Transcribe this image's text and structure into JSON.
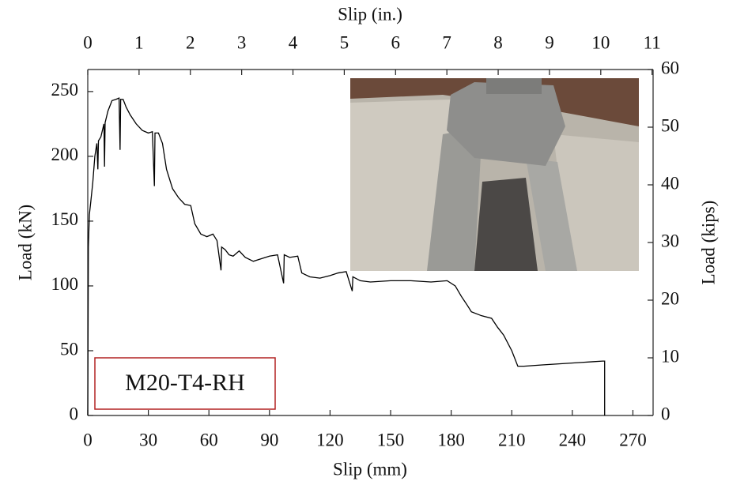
{
  "chart_data": {
    "type": "line",
    "xlabel": "Slip (mm)",
    "x2label": "Slip (in.)",
    "ylabel": "Load (kN)",
    "y2label": "Load (kips)",
    "annotation": "M20-T4-RH",
    "xlim": [
      0,
      280
    ],
    "xticks": [
      0,
      30,
      60,
      90,
      120,
      150,
      180,
      210,
      240,
      270
    ],
    "x2lim": [
      0,
      11.02
    ],
    "x2ticks": [
      0,
      1,
      2,
      3,
      4,
      5,
      6,
      7,
      8,
      9,
      10,
      11
    ],
    "ylim": [
      0,
      267
    ],
    "yticks": [
      0,
      50,
      100,
      150,
      200,
      250
    ],
    "y2lim": [
      0,
      60
    ],
    "y2ticks": [
      0,
      10,
      20,
      30,
      40,
      50,
      60
    ],
    "x": [
      0,
      0.3,
      0.8,
      1.5,
      2.5,
      3.5,
      4.5,
      5,
      5.3,
      6.5,
      8,
      8.3,
      8.6,
      10,
      12,
      14,
      15.5,
      16,
      16.3,
      17.5,
      19,
      21,
      24,
      27,
      30,
      32,
      33,
      33.3,
      35,
      37,
      39,
      42,
      45,
      48,
      51,
      53,
      56,
      59,
      62,
      64,
      66,
      66.3,
      68,
      70,
      72,
      75,
      78,
      82,
      86,
      90,
      94,
      97,
      97.3,
      100,
      104,
      106,
      110,
      115,
      120,
      124,
      128,
      131,
      131.3,
      135,
      140,
      150,
      160,
      170,
      178,
      182,
      185,
      188,
      190,
      195,
      200,
      203,
      206,
      210,
      213,
      216,
      225,
      235,
      245,
      250,
      255,
      256,
      256
    ],
    "series": [
      {
        "name": "Load",
        "color": "#000000",
        "values": [
          0,
          130,
          155,
          165,
          180,
          200,
          210,
          190,
          212,
          215,
          225,
          192,
          226,
          235,
          243,
          244,
          245,
          205,
          244,
          244,
          238,
          232,
          225,
          220,
          218,
          219,
          177,
          218,
          218,
          210,
          190,
          175,
          168,
          163,
          162,
          148,
          140,
          138,
          140,
          135,
          112,
          130,
          128,
          124,
          123,
          127,
          122,
          119,
          121,
          123,
          124,
          102,
          124,
          122,
          123,
          110,
          107,
          106,
          108,
          110,
          111,
          96,
          107,
          104,
          103,
          104,
          104,
          103,
          104,
          100,
          92,
          85,
          80,
          77,
          75,
          68,
          62,
          50,
          38,
          38,
          39,
          40,
          41,
          41.5,
          42,
          42,
          0
        ]
      }
    ]
  }
}
